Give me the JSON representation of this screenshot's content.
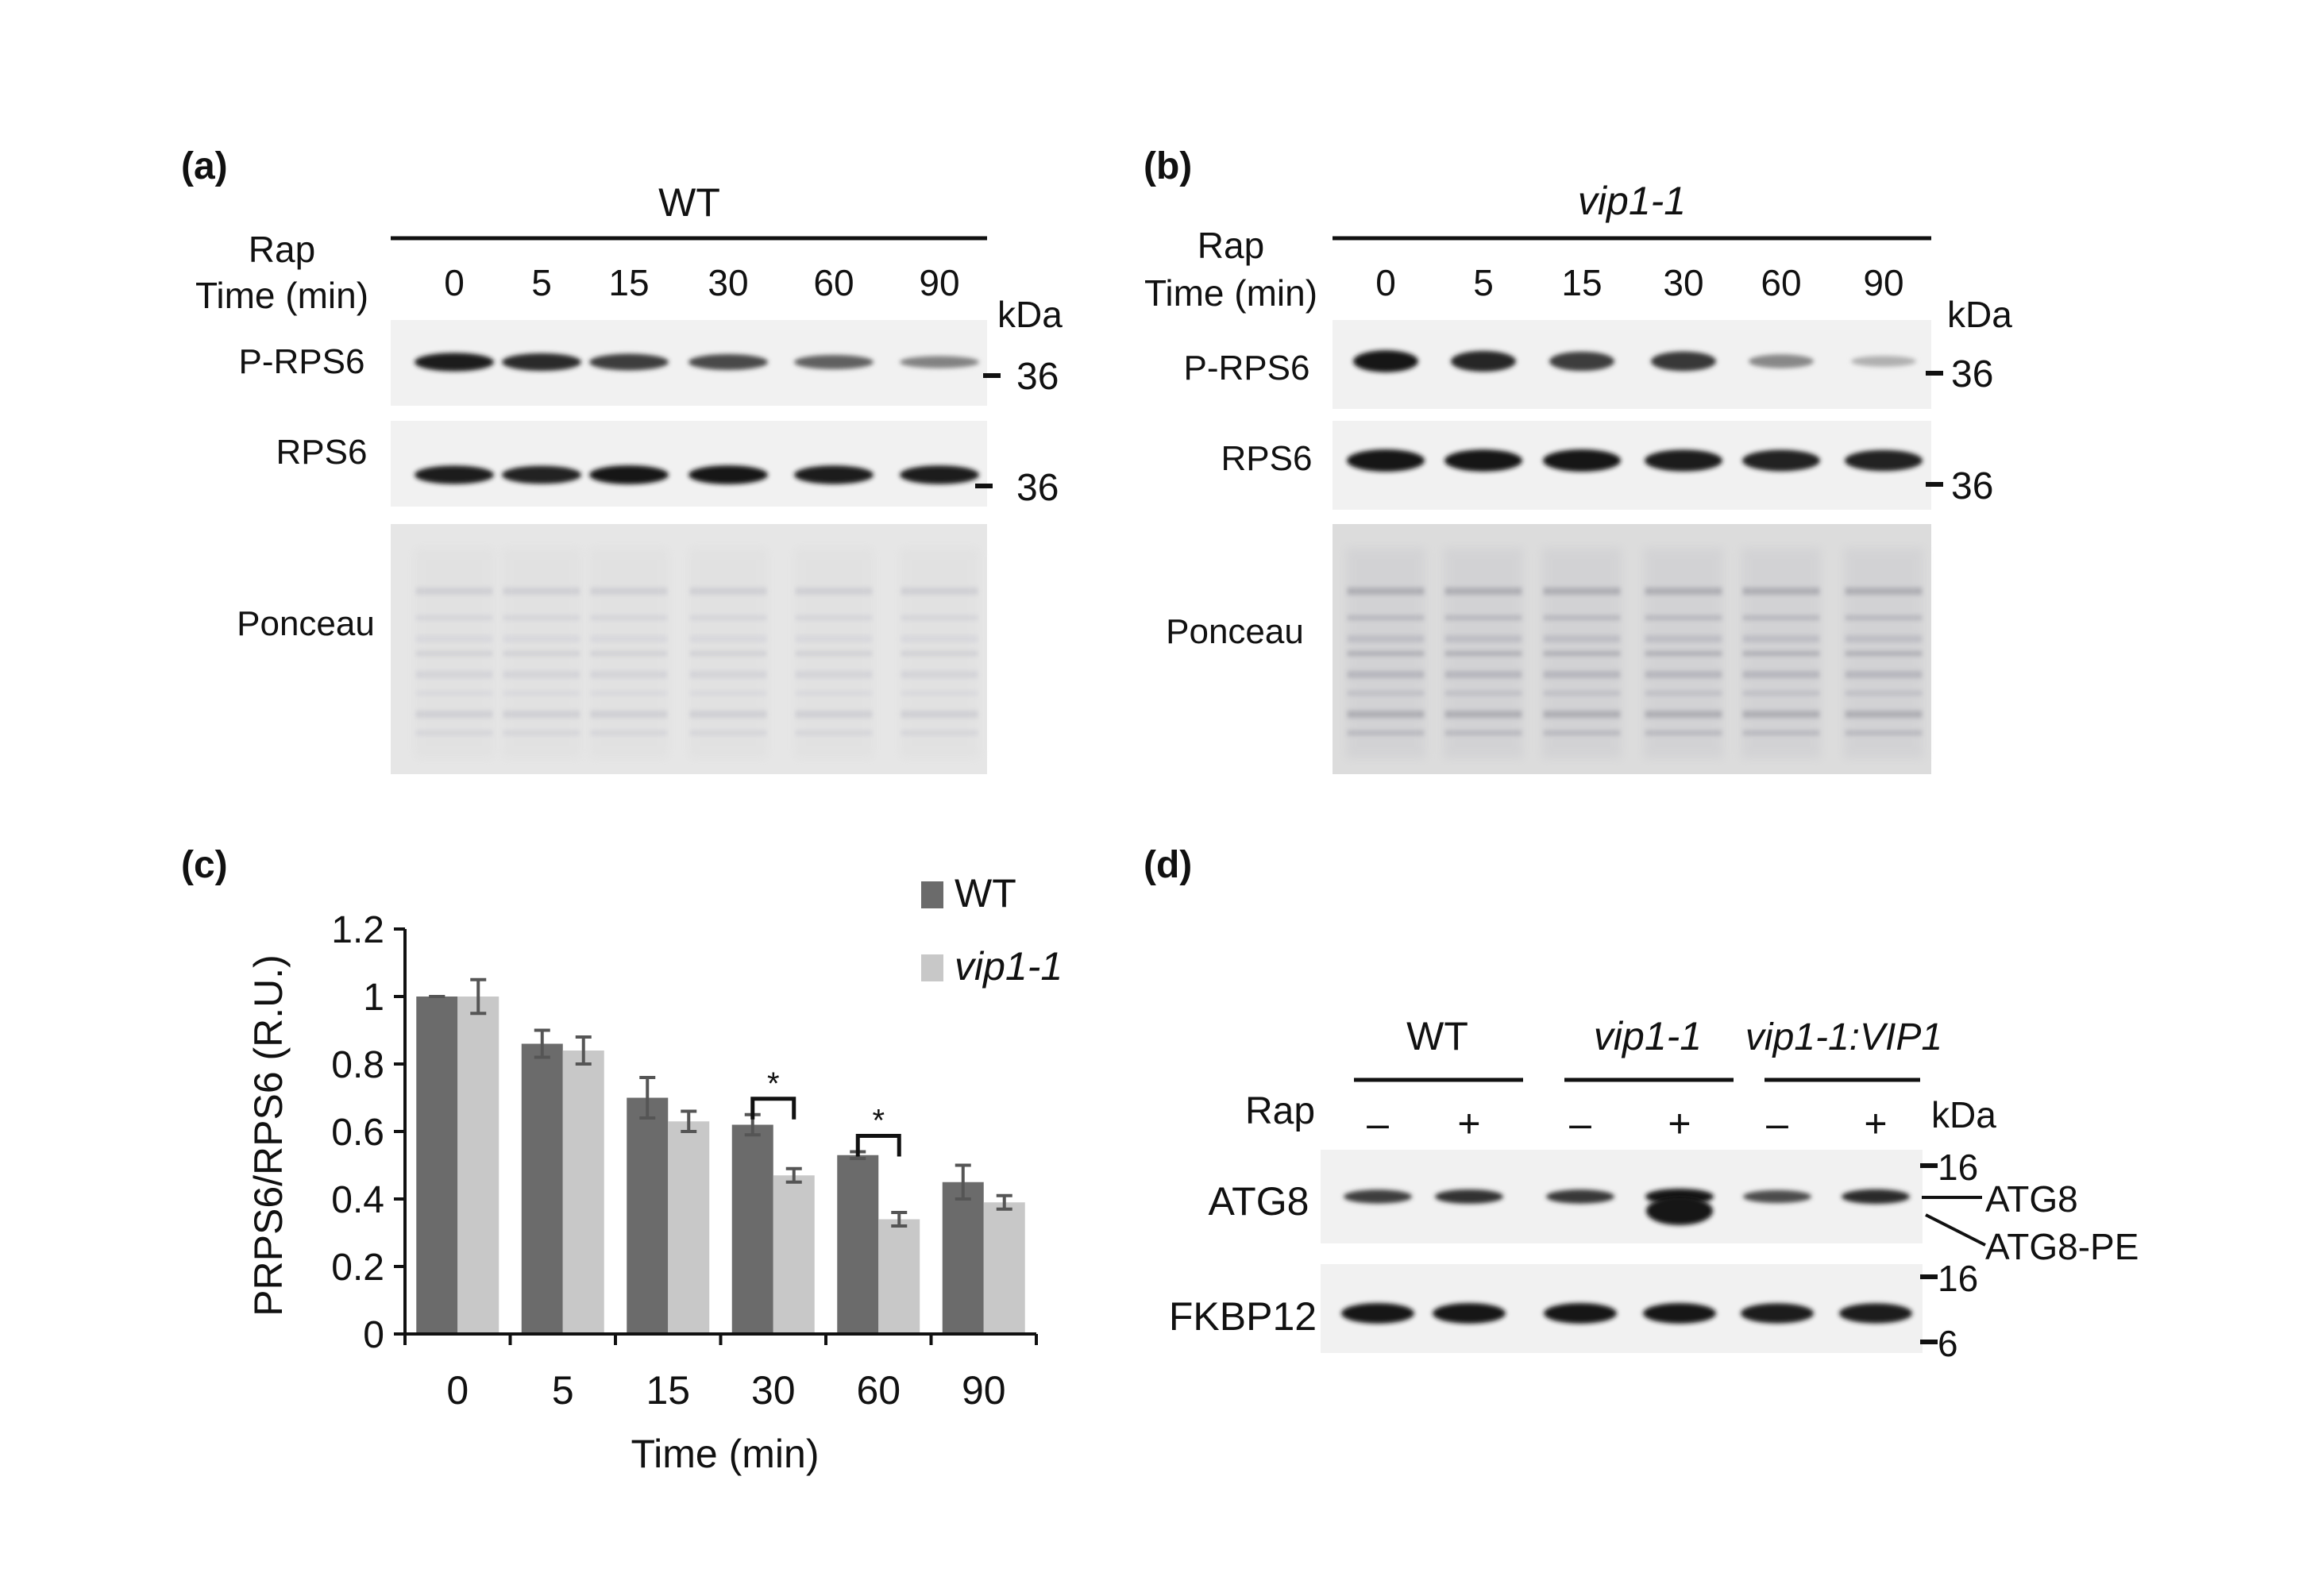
{
  "panel_a": {
    "label": "(a)",
    "genotype": "WT",
    "rap_label": "Rap",
    "time_label": "Time (min)",
    "lanes": [
      "0",
      "5",
      "15",
      "30",
      "60",
      "90"
    ],
    "kda": "kDa",
    "rows": [
      "P-RPS6",
      "RPS6",
      "Ponceau"
    ],
    "marker_prps6": "36",
    "marker_rps6": "36",
    "prps6_intensity": [
      0.95,
      0.88,
      0.8,
      0.74,
      0.62,
      0.45
    ],
    "rps6_intensity": [
      0.95,
      0.92,
      0.98,
      0.98,
      0.96,
      0.97
    ]
  },
  "panel_b": {
    "label": "(b)",
    "genotype": "vip1-1",
    "rap_label": "Rap",
    "time_label": "Time (min)",
    "lanes": [
      "0",
      "5",
      "15",
      "30",
      "60",
      "90"
    ],
    "kda": "kDa",
    "rows": [
      "P-RPS6",
      "RPS6",
      "Ponceau"
    ],
    "marker_prps6": "36",
    "marker_rps6": "36",
    "prps6_intensity": [
      0.98,
      0.9,
      0.8,
      0.82,
      0.42,
      0.22
    ],
    "rps6_intensity": [
      1.0,
      0.98,
      1.0,
      0.96,
      0.94,
      0.92
    ]
  },
  "panel_c": {
    "label": "(c)",
    "significance_marker": "*"
  },
  "chart_data": {
    "type": "bar",
    "categories": [
      "0",
      "5",
      "15",
      "30",
      "60",
      "90"
    ],
    "series": [
      {
        "name": "WT",
        "color": "#6b6b6b",
        "values": [
          1.0,
          0.86,
          0.7,
          0.62,
          0.53,
          0.45
        ],
        "errors": [
          0.0,
          0.04,
          0.06,
          0.03,
          0.01,
          0.05
        ]
      },
      {
        "name": "vip1-1",
        "color": "#c8c8c8",
        "values": [
          1.0,
          0.84,
          0.63,
          0.47,
          0.34,
          0.39
        ],
        "errors": [
          0.05,
          0.04,
          0.03,
          0.02,
          0.02,
          0.02
        ]
      }
    ],
    "xlabel": "Time (min)",
    "ylabel": "PRPS6/RPS6 (R.U.)",
    "ylim": [
      0,
      1.2
    ],
    "yticks": [
      "0",
      "0.2",
      "0.4",
      "0.6",
      "0.8",
      "1",
      "1.2"
    ],
    "legend": "top-right",
    "significant_categories": [
      "30",
      "60"
    ]
  },
  "panel_d": {
    "label": "(d)",
    "groups": [
      "WT",
      "vip1-1",
      "vip1-1:VIP1"
    ],
    "rap_label": "Rap",
    "rap_signs": [
      "–",
      "+",
      "–",
      "+",
      "–",
      "+"
    ],
    "kda": "kDa",
    "rows": [
      "ATG8",
      "FKBP12"
    ],
    "markers_atg8": [
      "16"
    ],
    "markers_fkbp12": [
      "16",
      "6"
    ],
    "band_labels": [
      "ATG8",
      "ATG8-PE"
    ],
    "atg8_intensity": [
      0.8,
      0.85,
      0.82,
      1.0,
      0.72,
      0.88
    ],
    "fkbp12_intensity": [
      0.98,
      0.98,
      0.98,
      0.98,
      0.95,
      0.95
    ]
  }
}
